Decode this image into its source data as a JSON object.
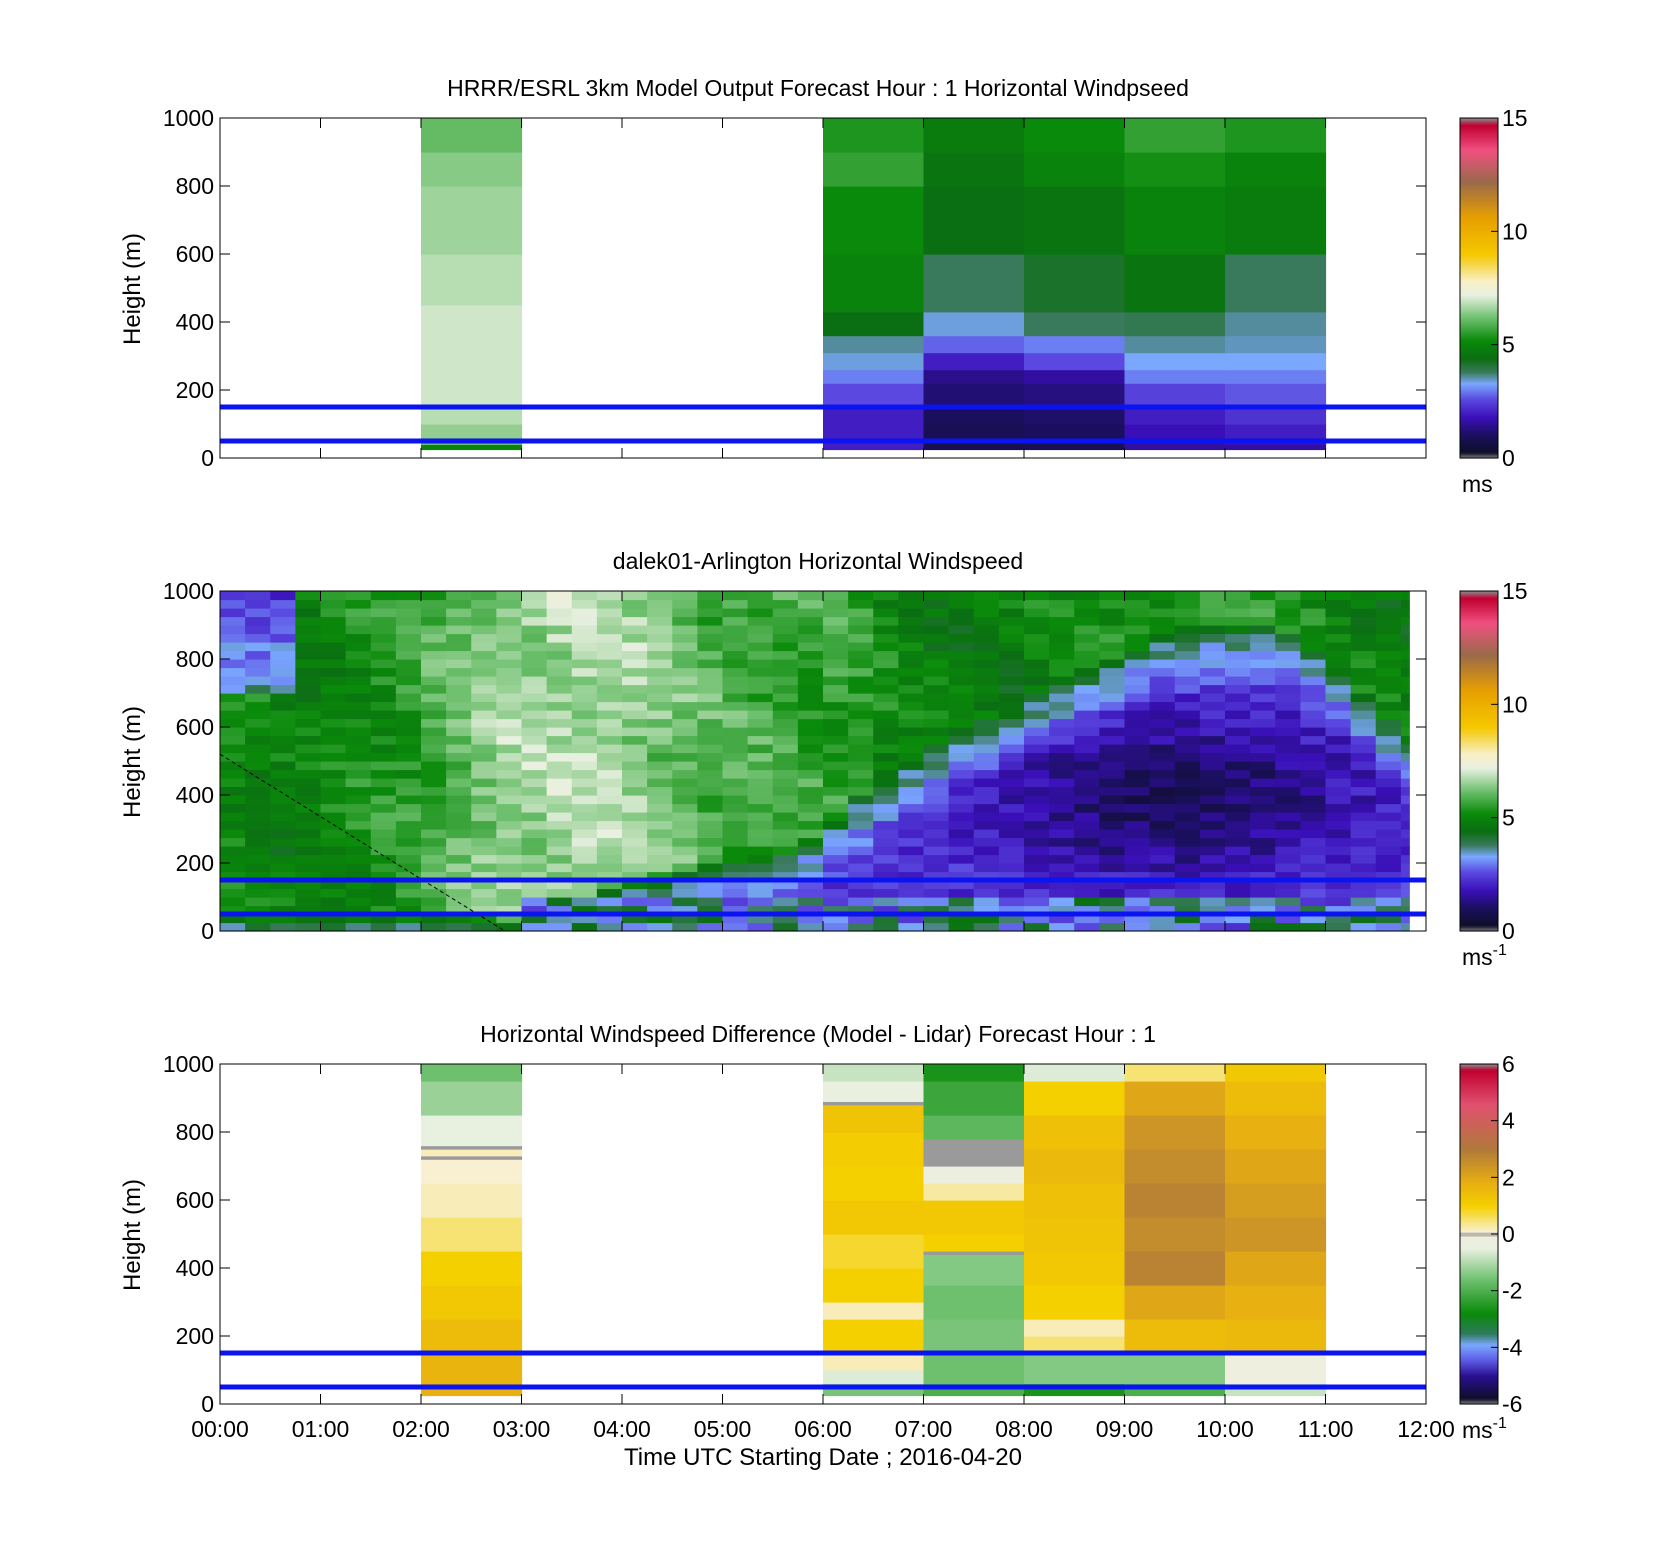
{
  "colors": {
    "threshold_line": "#0a14f0",
    "speed_colormap": [
      {
        "v": 0,
        "c": "#8a8a8a"
      },
      {
        "v": 0.25,
        "c": "#0e0e28"
      },
      {
        "v": 1,
        "c": "#1a0f5c"
      },
      {
        "v": 1.8,
        "c": "#3a0fb8"
      },
      {
        "v": 2.6,
        "c": "#5a48e0"
      },
      {
        "v": 3.3,
        "c": "#7aa8ff"
      },
      {
        "v": 3.8,
        "c": "#3a7a5c"
      },
      {
        "v": 4.4,
        "c": "#0a6e12"
      },
      {
        "v": 5.2,
        "c": "#0a8a0a"
      },
      {
        "v": 6.2,
        "c": "#6ec06e"
      },
      {
        "v": 7.2,
        "c": "#e8f0e0"
      },
      {
        "v": 7.8,
        "c": "#f8f0c8"
      },
      {
        "v": 9,
        "c": "#f5c800"
      },
      {
        "v": 10.6,
        "c": "#e8a000"
      },
      {
        "v": 12.2,
        "c": "#9a6a4a"
      },
      {
        "v": 13.6,
        "c": "#f05080"
      },
      {
        "v": 14.7,
        "c": "#c00030"
      },
      {
        "v": 15,
        "c": "#8a8a8a"
      }
    ],
    "diff_colormap": [
      {
        "v": -6,
        "c": "#8a8a8a"
      },
      {
        "v": -5.8,
        "c": "#0e0e28"
      },
      {
        "v": -5,
        "c": "#2a0f90"
      },
      {
        "v": -4.4,
        "c": "#6060e8"
      },
      {
        "v": -3.9,
        "c": "#7aa8ff"
      },
      {
        "v": -3.5,
        "c": "#2e7a5c"
      },
      {
        "v": -2.8,
        "c": "#0a8a0a"
      },
      {
        "v": -1.6,
        "c": "#6ec06e"
      },
      {
        "v": -0.5,
        "c": "#e8f0e0"
      },
      {
        "v": -0.1,
        "c": "#f0eedd"
      },
      {
        "v": 0,
        "c": "#9a9a9a"
      },
      {
        "v": 0.1,
        "c": "#f8f0d0"
      },
      {
        "v": 1,
        "c": "#f5d000"
      },
      {
        "v": 1.8,
        "c": "#e8b010"
      },
      {
        "v": 3,
        "c": "#b07a3a"
      },
      {
        "v": 4.6,
        "c": "#e05070"
      },
      {
        "v": 5.8,
        "c": "#c00030"
      },
      {
        "v": 6,
        "c": "#8a8a8a"
      }
    ]
  },
  "chart_data": [
    {
      "type": "heatmap",
      "title": "HRRR/ESRL 3km Model Output   Forecast Hour : 1 Horizontal Windpseed",
      "ylabel": "Height (m)",
      "xlabel": "",
      "xlim": [
        "00:00",
        "12:00"
      ],
      "ylim": [
        0,
        1000
      ],
      "y_ticks": [
        "0",
        "200",
        "400",
        "600",
        "800",
        "1000"
      ],
      "colorbar": {
        "range": [
          0,
          15
        ],
        "ticks": [
          "0",
          "5",
          "10",
          "15"
        ],
        "unit": "ms",
        "unit_sup": "",
        "colormap": "speed_colormap"
      },
      "threshold_lines_m": [
        50,
        150
      ],
      "columns": [
        {
          "start": "02:00",
          "end": "03:00",
          "height_bounds": [
            25,
            40,
            60,
            100,
            150,
            220,
            330,
            450,
            600,
            800,
            900,
            1000
          ],
          "values": [
            5.0,
            6.2,
            6.5,
            6.8,
            7.0,
            7.0,
            7.0,
            6.8,
            6.6,
            6.4,
            6.1
          ]
        },
        {
          "start": "06:00",
          "end": "07:00",
          "height_bounds": [
            25,
            40,
            60,
            100,
            150,
            220,
            260,
            310,
            360,
            430,
            600,
            800,
            900,
            1000
          ],
          "values": [
            2.0,
            2.0,
            2.0,
            2.0,
            2.6,
            3.0,
            3.4,
            3.6,
            4.4,
            5.0,
            5.2,
            5.6,
            5.4
          ]
        },
        {
          "start": "07:00",
          "end": "08:00",
          "height_bounds": [
            25,
            40,
            60,
            100,
            150,
            220,
            260,
            310,
            360,
            430,
            600,
            800,
            900,
            1000
          ],
          "values": [
            0.8,
            0.8,
            0.9,
            1.0,
            1.2,
            1.4,
            2.0,
            2.8,
            3.4,
            3.8,
            4.4,
            4.6,
            4.8
          ]
        },
        {
          "start": "08:00",
          "end": "09:00",
          "height_bounds": [
            25,
            40,
            60,
            100,
            150,
            220,
            260,
            310,
            360,
            430,
            600,
            800,
            900,
            1000
          ],
          "values": [
            0.9,
            0.9,
            1.0,
            1.1,
            1.3,
            1.6,
            2.6,
            3.0,
            3.8,
            4.2,
            4.6,
            5.0,
            5.2
          ]
        },
        {
          "start": "09:00",
          "end": "10:00",
          "height_bounds": [
            25,
            40,
            60,
            100,
            150,
            220,
            260,
            310,
            360,
            430,
            600,
            800,
            900,
            1000
          ],
          "values": [
            1.6,
            1.6,
            1.8,
            2.0,
            2.5,
            3.0,
            3.3,
            3.6,
            3.9,
            4.6,
            5.0,
            5.3,
            5.6
          ]
        },
        {
          "start": "10:00",
          "end": "11:00",
          "height_bounds": [
            25,
            40,
            60,
            100,
            150,
            220,
            260,
            310,
            360,
            430,
            600,
            800,
            900,
            1000
          ],
          "values": [
            1.6,
            1.8,
            2.0,
            2.3,
            2.7,
            3.0,
            3.3,
            3.5,
            3.6,
            3.8,
            4.8,
            5.0,
            5.4
          ]
        }
      ]
    },
    {
      "type": "heatmap",
      "title": "dalek01-Arlington  Horizontal Windspeed",
      "ylabel": "Height (m)",
      "xlabel": "",
      "xlim": [
        "00:00",
        "12:00"
      ],
      "ylim": [
        0,
        1000
      ],
      "y_ticks": [
        "0",
        "200",
        "400",
        "600",
        "800",
        "1000"
      ],
      "colorbar": {
        "range": [
          0,
          15
        ],
        "ticks": [
          "0",
          "5",
          "10",
          "15"
        ],
        "unit": "ms",
        "unit_sup": "-1",
        "colormap": "speed_colormap"
      },
      "threshold_lines_m": [
        50,
        150
      ],
      "data_end": "11:50",
      "column_interval_min": 15,
      "height_resolution_m": 25,
      "surface_profile": {
        "times": [
          "00:00",
          "00:45",
          "01:45",
          "02:45",
          "03:45",
          "04:45",
          "05:45",
          "06:15",
          "06:45",
          "07:15",
          "07:45",
          "08:15",
          "08:45",
          "09:15",
          "09:45",
          "10:15",
          "10:45",
          "11:15",
          "11:45"
        ],
        "values": [
          5.2,
          4.8,
          5.4,
          6.5,
          6.8,
          6.0,
          5.6,
          5.6,
          5.0,
          4.8,
          4.8,
          5.0,
          5.2,
          5.4,
          5.6,
          5.4,
          5.2,
          5.0,
          4.8
        ]
      },
      "stable_layer": {
        "times": [
          "00:00",
          "03:00",
          "04:00",
          "05:00",
          "05:45",
          "06:30",
          "07:30",
          "08:30",
          "09:30",
          "10:30",
          "11:00",
          "11:50"
        ],
        "top_m": [
          0,
          0,
          100,
          160,
          200,
          390,
          560,
          700,
          850,
          860,
          760,
          520
        ]
      },
      "core_minimum": {
        "time": "09:30",
        "height_m": 390,
        "speed": 0.7
      },
      "dashed_line": {
        "from": {
          "time": "00:00",
          "height_m": 520
        },
        "to": {
          "time": "02:50",
          "height_m": 0
        }
      }
    },
    {
      "type": "heatmap",
      "title": "Horizontal Windspeed Difference (Model - Lidar) Forecast Hour : 1",
      "ylabel": "Height (m)",
      "xlabel": "Time UTC  Starting Date ; 2016-04-20",
      "xlim": [
        "00:00",
        "12:00"
      ],
      "ylim": [
        0,
        1000
      ],
      "y_ticks": [
        "0",
        "200",
        "400",
        "600",
        "800",
        "1000"
      ],
      "x_ticks": [
        "00:00",
        "01:00",
        "02:00",
        "03:00",
        "04:00",
        "05:00",
        "06:00",
        "07:00",
        "08:00",
        "09:00",
        "10:00",
        "11:00",
        "12:00"
      ],
      "colorbar": {
        "range": [
          -6,
          6
        ],
        "ticks": [
          "-6",
          "-4",
          "-2",
          "0",
          "2",
          "4",
          "6"
        ],
        "unit": "ms",
        "unit_sup": "-1",
        "colormap": "diff_colormap"
      },
      "threshold_lines_m": [
        50,
        150
      ],
      "columns": [
        {
          "start": "02:00",
          "end": "03:00",
          "height_bounds": [
            25,
            60,
            150,
            250,
            350,
            450,
            550,
            650,
            720,
            730,
            750,
            760,
            850,
            950,
            1000
          ],
          "values": [
            1.8,
            1.7,
            1.5,
            1.2,
            1.0,
            0.5,
            0.2,
            0.1,
            0.0,
            0.2,
            0.0,
            -0.5,
            -1.2,
            -1.6
          ]
        },
        {
          "start": "06:00",
          "end": "07:00",
          "height_bounds": [
            25,
            60,
            100,
            150,
            250,
            300,
            400,
            500,
            600,
            700,
            800,
            880,
            890,
            950,
            1000
          ],
          "values": [
            -1.5,
            -0.6,
            0.2,
            1.0,
            0.2,
            1.0,
            0.8,
            1.2,
            1.0,
            1.1,
            1.3,
            0.0,
            -0.4,
            -0.8
          ]
        },
        {
          "start": "07:00",
          "end": "08:00",
          "height_bounds": [
            25,
            60,
            150,
            250,
            350,
            440,
            450,
            500,
            600,
            650,
            700,
            780,
            850,
            950,
            1000
          ],
          "values": [
            -2.0,
            -1.6,
            -1.5,
            -1.6,
            -1.4,
            0.0,
            1.0,
            1.2,
            0.3,
            -0.3,
            0.0,
            -1.8,
            -2.2,
            -2.6
          ]
        },
        {
          "start": "08:00",
          "end": "09:00",
          "height_bounds": [
            25,
            60,
            150,
            200,
            250,
            350,
            450,
            550,
            650,
            750,
            850,
            950,
            1000
          ],
          "values": [
            -2.6,
            -1.4,
            0.5,
            0.2,
            1.0,
            1.2,
            1.3,
            1.4,
            1.6,
            1.4,
            1.0,
            -0.6
          ]
        },
        {
          "start": "09:00",
          "end": "10:00",
          "height_bounds": [
            25,
            60,
            150,
            250,
            350,
            450,
            550,
            650,
            750,
            850,
            950,
            1000
          ],
          "values": [
            -2.0,
            -1.4,
            1.5,
            2.0,
            2.8,
            2.6,
            2.8,
            2.6,
            2.4,
            2.0,
            0.5
          ]
        },
        {
          "start": "10:00",
          "end": "11:00",
          "height_bounds": [
            25,
            60,
            150,
            250,
            350,
            450,
            550,
            650,
            750,
            850,
            950,
            1000
          ],
          "values": [
            -0.8,
            -0.2,
            1.6,
            1.8,
            2.0,
            2.4,
            2.2,
            2.0,
            1.8,
            1.5,
            1.2
          ]
        }
      ]
    }
  ]
}
